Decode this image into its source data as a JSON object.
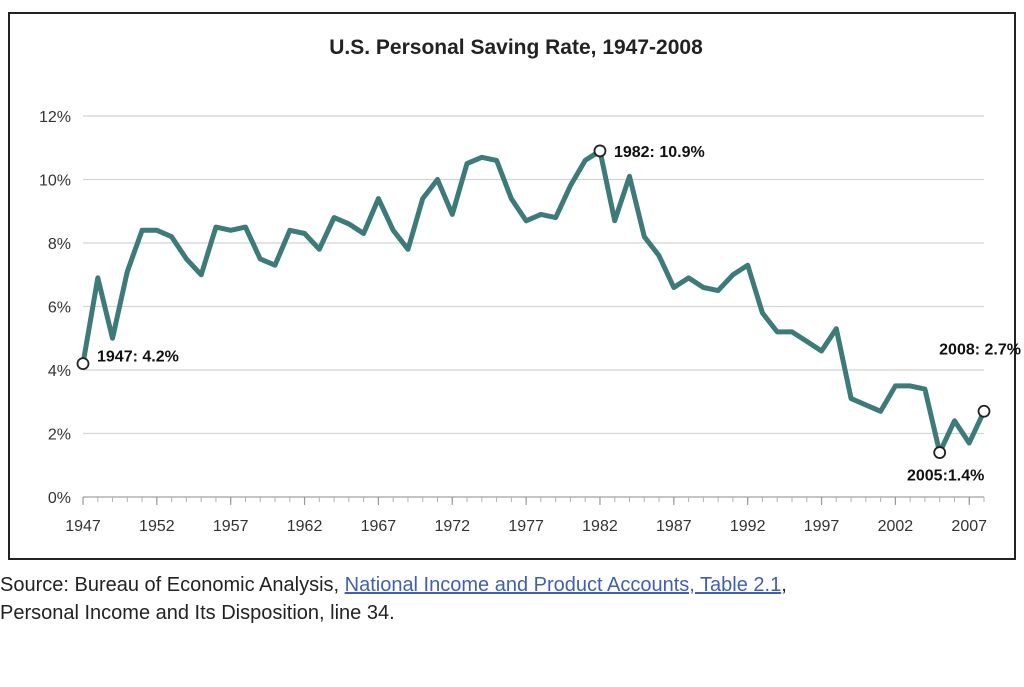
{
  "chart_data": {
    "type": "line",
    "title": "U.S. Personal Saving Rate, 1947-2008",
    "xlabel": "",
    "ylabel": "",
    "xlim": [
      1947,
      2008
    ],
    "ylim": [
      0,
      12
    ],
    "x_ticks": [
      "1947",
      "1952",
      "1957",
      "1962",
      "1967",
      "1972",
      "1977",
      "1982",
      "1987",
      "1992",
      "1997",
      "2002",
      "2007"
    ],
    "y_ticks": [
      "0%",
      "2%",
      "4%",
      "6%",
      "8%",
      "10%",
      "12%"
    ],
    "grid": "horizontal",
    "legend": "none",
    "line_color": "#3d7a7a",
    "series": [
      {
        "x": [
          1947,
          1948,
          1949,
          1950,
          1951,
          1952,
          1953,
          1954,
          1955,
          1956,
          1957,
          1958,
          1959,
          1960,
          1961,
          1962,
          1963,
          1964,
          1965,
          1966,
          1967,
          1968,
          1969,
          1970,
          1971,
          1972,
          1973,
          1974,
          1975,
          1976,
          1977,
          1978,
          1979,
          1980,
          1981,
          1982,
          1983,
          1984,
          1985,
          1986,
          1987,
          1988,
          1989,
          1990,
          1991,
          1992,
          1993,
          1994,
          1995,
          1996,
          1997,
          1998,
          1999,
          2000,
          2001,
          2002,
          2003,
          2004,
          2005,
          2006,
          2007,
          2008
        ],
        "values": [
          4.2,
          6.9,
          5.0,
          7.1,
          8.4,
          8.4,
          8.2,
          7.5,
          7.0,
          8.5,
          8.4,
          8.5,
          7.5,
          7.3,
          8.4,
          8.3,
          7.8,
          8.8,
          8.6,
          8.3,
          9.4,
          8.4,
          7.8,
          9.4,
          10.0,
          8.9,
          10.5,
          10.7,
          10.6,
          9.4,
          8.7,
          8.9,
          8.8,
          9.8,
          10.6,
          10.9,
          8.7,
          10.1,
          8.2,
          7.6,
          6.6,
          6.9,
          6.6,
          6.5,
          7.0,
          7.3,
          5.8,
          5.2,
          5.2,
          4.9,
          4.6,
          5.3,
          3.1,
          2.9,
          2.7,
          3.5,
          3.5,
          3.4,
          1.4,
          2.4,
          1.7,
          2.7
        ]
      }
    ],
    "highlights": [
      {
        "x": 1947,
        "y": 4.2,
        "label": "1947: 4.2%"
      },
      {
        "x": 1982,
        "y": 10.9,
        "label": "1982: 10.9%"
      },
      {
        "x": 2005,
        "y": 1.4,
        "label": "2005:1.4%"
      },
      {
        "x": 2008,
        "y": 2.7,
        "label": "2008: 2.7%"
      }
    ]
  },
  "source": {
    "prefix": "Source: Bureau of Economic Analysis, ",
    "link_text": "National Income and Product Accounts, Table 2.1",
    "suffix": ",",
    "line2": "Personal Income and Its Disposition, line 34."
  }
}
